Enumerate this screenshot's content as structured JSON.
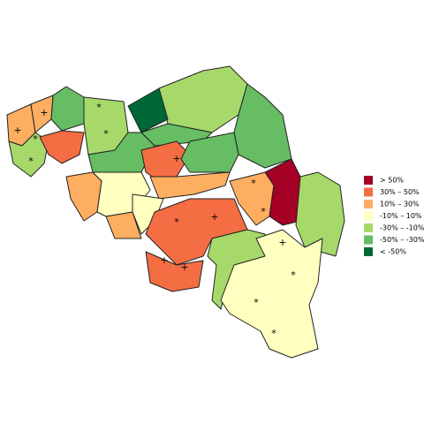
{
  "legend": {
    "entries": [
      {
        "label": "> 50%",
        "color": "#a50026"
      },
      {
        "label": "30%  –  50%",
        "color": "#f46d43"
      },
      {
        "label": "10%  –  30%",
        "color": "#fdae61"
      },
      {
        "label": "-10%  –  10%",
        "color": "#ffffbf"
      },
      {
        "label": "-30%  –  -10%",
        "color": "#a6d96a"
      },
      {
        "label": "-50%  –  -30%",
        "color": "#66bd63"
      },
      {
        "label": "< -50%",
        "color": "#006837"
      }
    ]
  },
  "markers": [
    "+",
    "+",
    "*",
    "*",
    "*",
    "*",
    "*",
    "+",
    "*",
    "*",
    "+",
    "+",
    "+",
    "+",
    "*",
    "*",
    "*"
  ]
}
